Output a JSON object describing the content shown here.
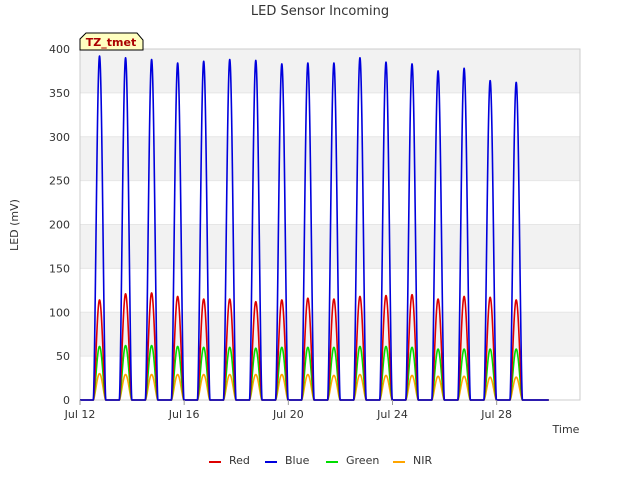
{
  "chart_data": {
    "type": "line",
    "title": "LED Sensor Incoming",
    "xlabel": "Time",
    "ylabel": "LED (mV)",
    "site_label": "TZ_tmet",
    "x_start_day": 12.0,
    "x_end_day": 30.0,
    "ylim": [
      0,
      400
    ],
    "yticks": [
      0,
      50,
      100,
      150,
      200,
      250,
      300,
      350,
      400
    ],
    "xticks": [
      {
        "day": 12,
        "label": "Jul 12"
      },
      {
        "day": 16,
        "label": "Jul 16"
      },
      {
        "day": 20,
        "label": "Jul 20"
      },
      {
        "day": 24,
        "label": "Jul 24"
      },
      {
        "day": 28,
        "label": "Jul 28"
      }
    ],
    "peak_days": [
      12.75,
      13.75,
      14.75,
      15.75,
      16.75,
      17.75,
      18.75,
      19.75,
      20.75,
      21.75,
      22.75,
      23.75,
      24.75,
      25.75,
      26.75,
      27.75,
      28.75
    ],
    "series": [
      {
        "name": "Red",
        "color": "#dd0000",
        "peaks": [
          114,
          121,
          122,
          118,
          115,
          115,
          112,
          114,
          116,
          115,
          118,
          119,
          120,
          115,
          118,
          117,
          114
        ]
      },
      {
        "name": "Blue",
        "color": "#0000dd",
        "peaks": [
          392,
          390,
          388,
          384,
          386,
          388,
          387,
          383,
          384,
          384,
          390,
          385,
          383,
          375,
          378,
          364,
          362
        ]
      },
      {
        "name": "Green",
        "color": "#00dd00",
        "peaks": [
          61,
          62,
          62,
          61,
          60,
          60,
          59,
          60,
          60,
          60,
          61,
          61,
          60,
          58,
          58,
          58,
          58
        ]
      },
      {
        "name": "NIR",
        "color": "#ffa500",
        "peaks": [
          30,
          29,
          29,
          29,
          29,
          29,
          29,
          29,
          29,
          28,
          29,
          28,
          28,
          27,
          27,
          26,
          26
        ]
      }
    ],
    "legend_position": "bottom-center"
  }
}
